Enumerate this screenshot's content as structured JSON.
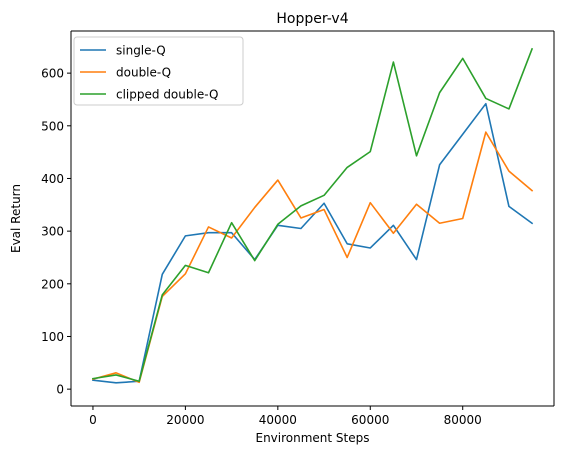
{
  "chart_data": {
    "type": "line",
    "title": "Hopper-v4",
    "xlabel": "Environment Steps",
    "ylabel": "Eval Return",
    "xlim": [
      -4750,
      99750
    ],
    "ylim": [
      -32,
      680
    ],
    "xticks": [
      0,
      20000,
      40000,
      60000,
      80000
    ],
    "yticks": [
      0,
      100,
      200,
      300,
      400,
      500,
      600
    ],
    "grid": false,
    "legend_position": "top-left",
    "x": [
      0,
      5000,
      10000,
      15000,
      20000,
      25000,
      30000,
      35000,
      40000,
      45000,
      50000,
      55000,
      60000,
      65000,
      70000,
      75000,
      80000,
      85000,
      90000,
      95000
    ],
    "series": [
      {
        "name": "single-Q",
        "color": "#1f77b4",
        "values": [
          17,
          12,
          15,
          218,
          291,
          297,
          297,
          246,
          311,
          305,
          353,
          276,
          268,
          311,
          246,
          426,
          484,
          542,
          347,
          315
        ]
      },
      {
        "name": "double-Q",
        "color": "#ff7f0e",
        "values": [
          19,
          31,
          13,
          176,
          219,
          308,
          287,
          345,
          397,
          325,
          341,
          250,
          354,
          296,
          351,
          315,
          324,
          488,
          414,
          377
        ]
      },
      {
        "name": "clipped double-Q",
        "color": "#2ca02c",
        "values": [
          20,
          27,
          15,
          179,
          235,
          221,
          316,
          244,
          313,
          348,
          368,
          421,
          451,
          621,
          443,
          563,
          628,
          552,
          532,
          646
        ]
      }
    ]
  }
}
